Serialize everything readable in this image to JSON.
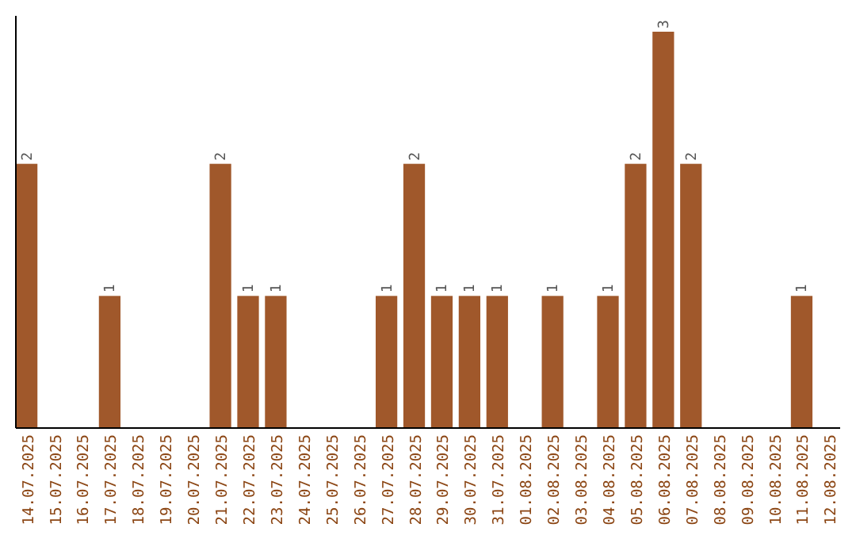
{
  "chart_data": {
    "type": "bar",
    "categories": [
      "14.07.2025",
      "15.07.2025",
      "16.07.2025",
      "17.07.2025",
      "18.07.2025",
      "19.07.2025",
      "20.07.2025",
      "21.07.2025",
      "22.07.2025",
      "23.07.2025",
      "24.07.2025",
      "25.07.2025",
      "26.07.2025",
      "27.07.2025",
      "28.07.2025",
      "29.07.2025",
      "30.07.2025",
      "31.07.2025",
      "01.08.2025",
      "02.08.2025",
      "03.08.2025",
      "04.08.2025",
      "05.08.2025",
      "06.08.2025",
      "07.08.2025",
      "08.08.2025",
      "09.08.2025",
      "10.08.2025",
      "11.08.2025",
      "12.08.2025"
    ],
    "values": [
      2,
      0,
      0,
      1,
      0,
      0,
      0,
      2,
      1,
      1,
      0,
      0,
      0,
      1,
      2,
      1,
      1,
      1,
      0,
      1,
      0,
      1,
      2,
      3,
      2,
      0,
      0,
      0,
      1,
      0
    ],
    "value_labels": [
      "2",
      null,
      null,
      "1",
      null,
      null,
      null,
      "2",
      "1",
      "1",
      null,
      null,
      null,
      "1",
      "2",
      "1",
      "1",
      "1",
      null,
      "1",
      null,
      "1",
      "2",
      "3",
      "2",
      null,
      null,
      null,
      "1",
      null
    ],
    "color": "#a0582b",
    "tick_labels": "x"
  }
}
